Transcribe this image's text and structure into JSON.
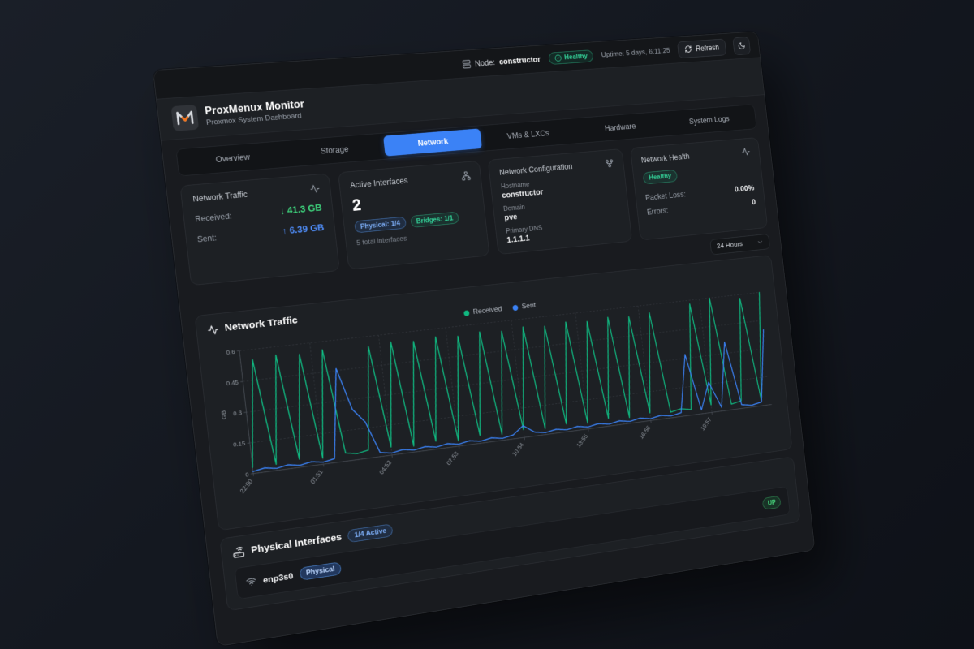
{
  "topbar": {
    "node_label": "Node:",
    "node_value": "constructor",
    "health_badge": "Healthy",
    "uptime": "Uptime: 5 days, 6:11:25",
    "refresh_label": "Refresh"
  },
  "brand": {
    "title": "ProxMenux Monitor",
    "subtitle": "Proxmox System Dashboard"
  },
  "tabs": [
    "Overview",
    "Storage",
    "Network",
    "VMs & LXCs",
    "Hardware",
    "System Logs"
  ],
  "active_tab": "Network",
  "stats": {
    "traffic": {
      "title": "Network Traffic",
      "rows": [
        {
          "label": "Received:",
          "value": "↓ 41.3 GB"
        },
        {
          "label": "Sent:",
          "value": "↑ 6.39 GB"
        }
      ]
    },
    "interfaces": {
      "title": "Active Interfaces",
      "count": "2",
      "badges": [
        {
          "label": "Physical: 1/4"
        },
        {
          "label": "Bridges: 1/1"
        }
      ],
      "footnote": "5 total interfaces"
    },
    "config": {
      "title": "Network Configuration",
      "fields": [
        {
          "label": "Hostname",
          "value": "constructor"
        },
        {
          "label": "Domain",
          "value": "pve"
        },
        {
          "label": "Primary DNS",
          "value": "1.1.1.1"
        }
      ]
    },
    "health": {
      "title": "Network Health",
      "badge": "Healthy",
      "rows": [
        {
          "label": "Packet Loss:",
          "value": "0.00%"
        },
        {
          "label": "Errors:",
          "value": "0"
        }
      ]
    }
  },
  "range_select": {
    "value": "24 Hours"
  },
  "chart_card": {
    "title": "Network Traffic"
  },
  "chart_data": {
    "type": "line",
    "title": "Network Traffic",
    "ylabel": "GB",
    "ylim": [
      0,
      0.6
    ],
    "yticks": [
      0,
      0.15,
      0.3,
      0.45,
      0.6
    ],
    "xtick_labels": [
      "22:50",
      "01:51",
      "04:52",
      "07:53",
      "10:54",
      "13:55",
      "16:56",
      "19:57"
    ],
    "xtick_indices": [
      0,
      6,
      12,
      18,
      24,
      30,
      36,
      42
    ],
    "grid": true,
    "legend_position": "top",
    "series": [
      {
        "name": "Received",
        "color": "#10b981",
        "values": [
          0.03,
          0.55,
          0.03,
          0.56,
          0.04,
          0.55,
          0.03,
          0.56,
          0.04,
          0.03,
          0.04,
          0.55,
          0.04,
          0.56,
          0.03,
          0.55,
          0.04,
          0.56,
          0.03,
          0.55,
          0.04,
          0.56,
          0.03,
          0.55,
          0.04,
          0.56,
          0.03,
          0.55,
          0.04,
          0.56,
          0.03,
          0.55,
          0.04,
          0.56,
          0.03,
          0.55,
          0.04,
          0.56,
          0.03,
          0.04,
          0.03,
          0.58,
          0.04,
          0.6,
          0.03,
          0.04,
          0.58,
          0.03,
          0.6
        ]
      },
      {
        "name": "Sent",
        "color": "#3b82f6",
        "values": [
          0.01,
          0.02,
          0.01,
          0.02,
          0.01,
          0.02,
          0.01,
          0.02,
          0.46,
          0.25,
          0.18,
          0.02,
          0.01,
          0.02,
          0.01,
          0.02,
          0.01,
          0.02,
          0.01,
          0.02,
          0.01,
          0.02,
          0.01,
          0.02,
          0.06,
          0.02,
          0.01,
          0.02,
          0.01,
          0.02,
          0.01,
          0.02,
          0.01,
          0.02,
          0.01,
          0.02,
          0.01,
          0.02,
          0.01,
          0.02,
          0.32,
          0.02,
          0.16,
          0.02,
          0.36,
          0.02,
          0.01,
          0.02,
          0.4
        ]
      }
    ]
  },
  "physical": {
    "title": "Physical Interfaces",
    "active_badge": "1/4 Active",
    "rows": [
      {
        "name": "enp3s0",
        "type_badge": "Physical",
        "status": "UP"
      }
    ]
  },
  "colors": {
    "accent_blue": "#3b82f6",
    "received_green": "#10b981",
    "status_green": "#34d399",
    "value_green": "#3fd97f",
    "value_blue": "#4f8df9",
    "logo_orange": "#f97316"
  }
}
